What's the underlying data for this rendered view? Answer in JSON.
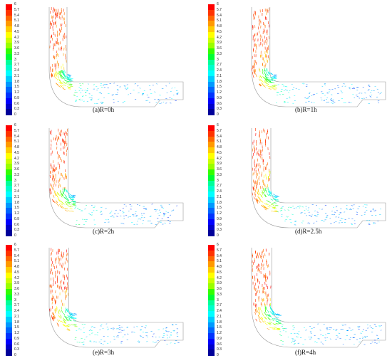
{
  "colorbar": {
    "ticks": [
      "6",
      "5.7",
      "5.4",
      "5.1",
      "4.8",
      "4.5",
      "4.2",
      "3.9",
      "3.6",
      "3.3",
      "3",
      "2.7",
      "2.4",
      "2.1",
      "1.8",
      "1.5",
      "1.2",
      "0.9",
      "0.6",
      "0.3",
      "0"
    ],
    "colors": [
      "#ff0000",
      "#ff3300",
      "#ff6600",
      "#ff9900",
      "#ffcc00",
      "#ffff00",
      "#ccff00",
      "#99ff00",
      "#33ff00",
      "#00ff33",
      "#00ff99",
      "#00ffcc",
      "#00ffff",
      "#00ccff",
      "#0099ff",
      "#0066ff",
      "#0033ff",
      "#0000ff",
      "#0000cc",
      "#000099"
    ]
  },
  "panels": [
    {
      "caption": "(a)R=0h",
      "bend_scale": 0.0
    },
    {
      "caption": "(b)R=1h",
      "bend_scale": 0.2
    },
    {
      "caption": "(c)R=2h",
      "bend_scale": 0.4
    },
    {
      "caption": "(d)R=2.5h",
      "bend_scale": 0.5
    },
    {
      "caption": "(e)R=3h",
      "bend_scale": 0.6
    },
    {
      "caption": "(f)R=4h",
      "bend_scale": 0.8
    }
  ]
}
